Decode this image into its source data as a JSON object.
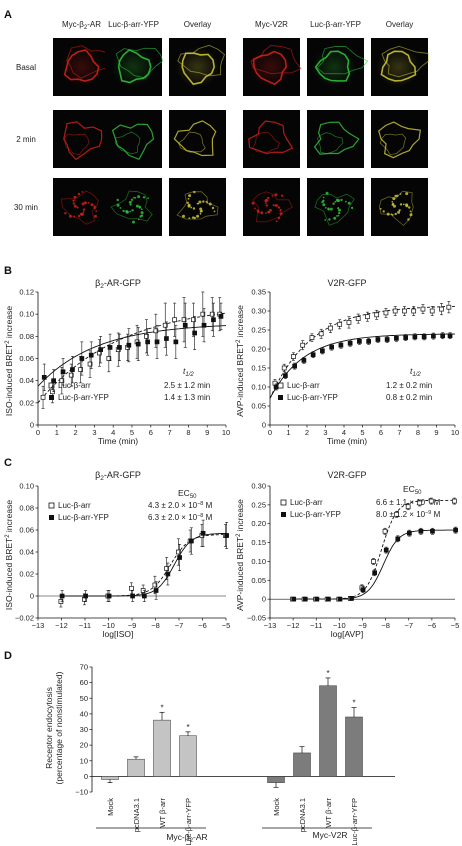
{
  "panel_a": {
    "letter": "A",
    "col_headers": [
      "Myc-β2-AR",
      "Luc-β-arr-YFP",
      "Overlay",
      "Myc-V2R",
      "Luc-β-arr-YFP",
      "Overlay"
    ],
    "row_labels": [
      "Basal",
      "2 min",
      "30 min"
    ],
    "colors": {
      "red": "#d0201a",
      "green": "#2fbf3a",
      "yellow": "#c9c23a"
    }
  },
  "panel_b": {
    "letter": "B",
    "t_half_header": "t1/2",
    "t_half_header_main": "t",
    "t_half_header_sub": "1/2",
    "ylabel_main": "ISO-induced BRET",
    "ylabel_sup": "2",
    "ylabel_tail": " increase",
    "ylabel_right_main": "AVP-induced BRET",
    "ylabel_right_sup": "2",
    "ylabel_right_tail": " increase",
    "left_title_main": "β",
    "left_title_sub": "2",
    "left_title_tail": "-AR-GFP",
    "right_title": "V2R-GFP",
    "legend_open": "Luc-β-arr",
    "legend_filled": "Luc-β-arr-YFP",
    "left_thalf_open": "2.5 ± 1.2 min",
    "left_thalf_filled": "1.4 ± 1.3 min",
    "right_thalf_open": "1.2 ± 0.2 min",
    "right_thalf_filled": "0.8 ± 0.2 min",
    "xlabel": "Time (min)"
  },
  "panel_c": {
    "letter": "C",
    "ec50_header_main": "EC",
    "ec50_header_sub": "50",
    "ylabel_main": "ISO-induced BRET",
    "ylabel_sup": "2",
    "ylabel_tail": " increase",
    "ylabel_right_main": "AVP-induced BRET",
    "ylabel_right_sup": "2",
    "ylabel_right_tail": " increase",
    "left_title_main": "β",
    "left_title_sub": "2",
    "left_title_tail": "-AR-GFP",
    "right_title": "V2R-GFP",
    "legend_open": "Luc-β-arr",
    "legend_filled": "Luc-β-arr-YFP",
    "left_ec50_open_main": "4.3 ± 2.0 × 10",
    "left_ec50_open_exp": "−8",
    "left_ec50_filled_main": "6.3 ± 2.0 × 10",
    "left_ec50_filled_exp": "−8",
    "right_ec50_open_main": "6.6 ± 1.1 × 10",
    "right_ec50_open_exp": "−9",
    "right_ec50_filled_main": "8.0 ± 1.2 × 10",
    "right_ec50_filled_exp": "−9",
    "ec50_unit": "M",
    "xlabel_left": "log[ISO]",
    "xlabel_right": "log[AVP]"
  },
  "panel_d": {
    "letter": "D",
    "ylabel_line1": "Receptor endocytosis",
    "ylabel_line2": "(percentage of nonstimulated)",
    "group_left_main": "Myc-β",
    "group_left_sub": "2",
    "group_left_tail": "-AR",
    "group_right": "Myc-V2R",
    "significance_mark": "*",
    "colors": {
      "left_bars": "#c4c4c4",
      "right_bars": "#7c7c7c"
    }
  },
  "chart_data": [
    {
      "type": "scatter",
      "panel": "B-left",
      "x_ticks": [
        0,
        1,
        2,
        3,
        4,
        5,
        6,
        7,
        8,
        9,
        10
      ],
      "y_ticks": [
        0,
        0.02,
        0.04,
        0.06,
        0.08,
        0.1,
        0.12
      ],
      "xlim": [
        0,
        10
      ],
      "ylim": [
        0,
        0.12
      ],
      "series": [
        {
          "name": "Luc-β-arr",
          "marker": "open-square",
          "x": [
            0.3,
            0.8,
            1.3,
            1.8,
            2.3,
            2.8,
            3.3,
            3.8,
            4.3,
            4.8,
            5.3,
            5.8,
            6.3,
            6.8,
            7.3,
            7.8,
            8.3,
            8.8,
            9.3,
            9.7
          ],
          "y": [
            0.025,
            0.03,
            0.04,
            0.045,
            0.05,
            0.055,
            0.065,
            0.06,
            0.068,
            0.07,
            0.075,
            0.08,
            0.085,
            0.09,
            0.095,
            0.095,
            0.095,
            0.1,
            0.1,
            0.1
          ],
          "err": [
            0.01,
            0.01,
            0.012,
            0.01,
            0.012,
            0.012,
            0.012,
            0.012,
            0.015,
            0.012,
            0.015,
            0.015,
            0.015,
            0.02,
            0.015,
            0.02,
            0.015,
            0.02,
            0.015,
            0.015
          ]
        },
        {
          "name": "Luc-β-arr-YFP",
          "marker": "filled-square",
          "x": [
            0.3,
            0.8,
            1.3,
            1.8,
            2.3,
            2.8,
            3.3,
            3.8,
            4.3,
            4.8,
            5.3,
            5.8,
            6.3,
            6.8,
            7.3,
            7.8,
            8.3,
            8.8,
            9.3,
            9.7
          ],
          "y": [
            0.043,
            0.04,
            0.048,
            0.05,
            0.06,
            0.063,
            0.068,
            0.07,
            0.07,
            0.072,
            0.073,
            0.075,
            0.075,
            0.078,
            0.075,
            0.09,
            0.083,
            0.09,
            0.095,
            0.098
          ],
          "err": [
            0.012,
            0.01,
            0.012,
            0.012,
            0.015,
            0.012,
            0.012,
            0.012,
            0.012,
            0.015,
            0.015,
            0.012,
            0.015,
            0.015,
            0.015,
            0.02,
            0.015,
            0.015,
            0.015,
            0.012
          ]
        }
      ]
    },
    {
      "type": "scatter",
      "panel": "B-right",
      "x_ticks": [
        0,
        1,
        2,
        3,
        4,
        5,
        6,
        7,
        8,
        9,
        10
      ],
      "y_ticks": [
        0,
        0.05,
        0.1,
        0.15,
        0.2,
        0.25,
        0.3,
        0.35
      ],
      "xlim": [
        0,
        10
      ],
      "ylim": [
        0,
        0.35
      ],
      "series": [
        {
          "name": "Luc-β-arr",
          "marker": "open-square",
          "x": [
            0.3,
            0.8,
            1.3,
            1.8,
            2.3,
            2.8,
            3.3,
            3.8,
            4.3,
            4.8,
            5.3,
            5.8,
            6.3,
            6.8,
            7.3,
            7.8,
            8.3,
            8.8,
            9.3,
            9.7
          ],
          "y": [
            0.11,
            0.15,
            0.18,
            0.21,
            0.23,
            0.24,
            0.255,
            0.265,
            0.27,
            0.28,
            0.285,
            0.29,
            0.295,
            0.3,
            0.3,
            0.3,
            0.305,
            0.3,
            0.305,
            0.31
          ],
          "err": [
            0.01,
            0.01,
            0.01,
            0.012,
            0.01,
            0.012,
            0.012,
            0.012,
            0.015,
            0.012,
            0.012,
            0.012,
            0.012,
            0.012,
            0.012,
            0.012,
            0.012,
            0.012,
            0.015,
            0.015
          ]
        },
        {
          "name": "Luc-β-arr-YFP",
          "marker": "filled-square",
          "x": [
            0.3,
            0.8,
            1.3,
            1.8,
            2.3,
            2.8,
            3.3,
            3.8,
            4.3,
            4.8,
            5.3,
            5.8,
            6.3,
            6.8,
            7.3,
            7.8,
            8.3,
            8.8,
            9.3,
            9.7
          ],
          "y": [
            0.1,
            0.13,
            0.155,
            0.17,
            0.185,
            0.195,
            0.205,
            0.21,
            0.215,
            0.22,
            0.22,
            0.225,
            0.225,
            0.228,
            0.23,
            0.232,
            0.232,
            0.234,
            0.235,
            0.235
          ],
          "err": [
            0.008,
            0.008,
            0.008,
            0.008,
            0.008,
            0.008,
            0.008,
            0.008,
            0.008,
            0.008,
            0.008,
            0.008,
            0.008,
            0.008,
            0.008,
            0.008,
            0.008,
            0.008,
            0.008,
            0.008
          ]
        }
      ]
    },
    {
      "type": "scatter",
      "panel": "C-left",
      "x_ticks": [
        -13,
        -12,
        -11,
        -10,
        -9,
        -8,
        -7,
        -6,
        -5
      ],
      "y_ticks": [
        -0.02,
        0,
        0.02,
        0.04,
        0.06,
        0.08,
        0.1
      ],
      "xlim": [
        -13,
        -5
      ],
      "ylim": [
        -0.02,
        0.1
      ],
      "series": [
        {
          "name": "Luc-β-arr",
          "marker": "open-square",
          "x": [
            -12,
            -11,
            -10,
            -9,
            -8.5,
            -8,
            -7.5,
            -7,
            -6.5,
            -6,
            -5
          ],
          "y": [
            -0.005,
            -0.003,
            0,
            0.007,
            0.005,
            0.01,
            0.025,
            0.04,
            0.05,
            0.055,
            0.055
          ],
          "err": [
            0.005,
            0.005,
            0.005,
            0.005,
            0.005,
            0.008,
            0.01,
            0.012,
            0.01,
            0.01,
            0.01
          ]
        },
        {
          "name": "Luc-β-arr-YFP",
          "marker": "filled-square",
          "x": [
            -12,
            -11,
            -10,
            -9,
            -8.5,
            -8,
            -7.5,
            -7,
            -6.5,
            -6,
            -5
          ],
          "y": [
            0,
            0,
            0,
            0,
            0,
            0.005,
            0.02,
            0.035,
            0.05,
            0.057,
            0.055
          ],
          "err": [
            0.005,
            0.005,
            0.005,
            0.005,
            0.005,
            0.008,
            0.01,
            0.012,
            0.012,
            0.012,
            0.012
          ]
        }
      ]
    },
    {
      "type": "scatter",
      "panel": "C-right",
      "x_ticks": [
        -13,
        -12,
        -11,
        -10,
        -9,
        -8,
        -7,
        -6,
        -5
      ],
      "y_ticks": [
        -0.05,
        0,
        0.05,
        0.1,
        0.15,
        0.2,
        0.25,
        0.3
      ],
      "xlim": [
        -13,
        -5
      ],
      "ylim": [
        -0.05,
        0.3
      ],
      "series": [
        {
          "name": "Luc-β-arr",
          "marker": "open-square",
          "x": [
            -12,
            -11.5,
            -11,
            -10.5,
            -10,
            -9.5,
            -9,
            -8.5,
            -8,
            -7.5,
            -7,
            -6.5,
            -6,
            -5
          ],
          "y": [
            0,
            0,
            0,
            0,
            0,
            0.002,
            0.03,
            0.1,
            0.18,
            0.225,
            0.245,
            0.255,
            0.26,
            0.26
          ],
          "err": [
            0.005,
            0.005,
            0.005,
            0.005,
            0.005,
            0.005,
            0.008,
            0.008,
            0.008,
            0.008,
            0.008,
            0.008,
            0.008,
            0.008
          ]
        },
        {
          "name": "Luc-β-arr-YFP",
          "marker": "filled-square",
          "x": [
            -12,
            -11.5,
            -11,
            -10.5,
            -10,
            -9.5,
            -9,
            -8.5,
            -8,
            -7.5,
            -7,
            -6.5,
            -6,
            -5
          ],
          "y": [
            0,
            0,
            0,
            0,
            0,
            0.002,
            0.025,
            0.07,
            0.13,
            0.16,
            0.175,
            0.18,
            0.18,
            0.183
          ],
          "err": [
            0.005,
            0.005,
            0.005,
            0.005,
            0.005,
            0.005,
            0.008,
            0.008,
            0.008,
            0.008,
            0.008,
            0.008,
            0.008,
            0.008
          ]
        }
      ]
    },
    {
      "type": "bar",
      "panel": "D",
      "categories": [
        "Mock",
        "pcDNA3.1",
        "WT β-arr",
        "Luc-β-arr-YFP",
        "Mock",
        "pcDNA3.1",
        "WT β-arr",
        "Luc-β-arr-YFP"
      ],
      "groups": [
        "Myc-β2-AR",
        "Myc-V2R"
      ],
      "values": [
        -2,
        11,
        36,
        26,
        -4,
        15,
        58,
        38
      ],
      "errors": [
        2,
        1.5,
        5,
        2.5,
        3,
        4,
        5,
        6
      ],
      "significant": [
        false,
        false,
        true,
        true,
        false,
        false,
        true,
        true
      ],
      "y_ticks": [
        -10,
        0,
        10,
        20,
        30,
        40,
        50,
        60,
        70
      ],
      "ylim": [
        -10,
        70
      ]
    }
  ]
}
